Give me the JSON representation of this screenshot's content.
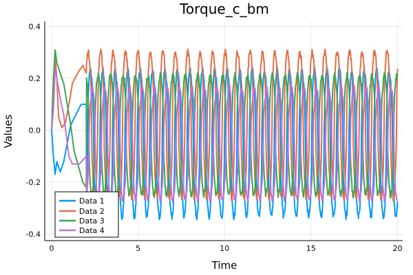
{
  "chart_data": {
    "type": "line",
    "title": "Torque_c_bm",
    "xlabel": "Time",
    "ylabel": "Values",
    "xlim": [
      -0.4,
      20.3
    ],
    "ylim": [
      -0.425,
      0.42
    ],
    "xticks": [
      0,
      5,
      10,
      15,
      20
    ],
    "xtick_labels": [
      "0",
      "5",
      "10",
      "15",
      "20"
    ],
    "yticks": [
      -0.4,
      -0.2,
      0.0,
      0.2,
      0.4
    ],
    "ytick_labels": [
      "-0.4",
      "-0.2",
      "0.0",
      "0.2",
      "0.4"
    ],
    "grid": true,
    "legend_position": "bottom-left",
    "period": 0.72,
    "series": [
      {
        "name": "Data 1",
        "color": "#009af9",
        "phase": 0.12,
        "x": [
          0,
          0.1,
          0.2,
          0.3,
          0.4,
          0.5,
          0.7,
          0.9,
          1.1,
          1.4,
          1.7,
          2.0
        ],
        "values": [
          0.0,
          -0.1,
          -0.17,
          -0.12,
          -0.14,
          -0.16,
          -0.12,
          -0.05,
          0.02,
          0.06,
          0.1,
          0.1
        ],
        "steady": {
          "mean": 0.05,
          "low": -0.38,
          "high": 0.28
        }
      },
      {
        "name": "Data 2",
        "color": "#e26f46",
        "phase": 0.3,
        "x": [
          0,
          0.1,
          0.2,
          0.3,
          0.4,
          0.6,
          0.8,
          1.0,
          1.2,
          1.5,
          1.8,
          2.0
        ],
        "values": [
          0.0,
          0.16,
          0.28,
          0.2,
          0.05,
          0.01,
          0.03,
          0.1,
          0.18,
          0.22,
          0.25,
          0.22
        ],
        "steady": {
          "mean": 0.02,
          "low": -0.3,
          "high": 0.36
        }
      },
      {
        "name": "Data 3",
        "color": "#3da44d",
        "phase": 0.52,
        "x": [
          0,
          0.1,
          0.2,
          0.3,
          0.5,
          0.7,
          0.9,
          1.1,
          1.3,
          1.6,
          1.8,
          2.0
        ],
        "values": [
          0.0,
          0.2,
          0.31,
          0.26,
          0.22,
          0.18,
          0.1,
          0.02,
          -0.08,
          -0.15,
          -0.2,
          -0.22
        ],
        "steady": {
          "mean": -0.06,
          "low": -0.28,
          "high": 0.26
        }
      },
      {
        "name": "Data 4",
        "color": "#c271d2",
        "phase": 0.0,
        "x": [
          0,
          0.1,
          0.2,
          0.3,
          0.5,
          0.7,
          0.9,
          1.0,
          1.2,
          1.4,
          1.6,
          2.0
        ],
        "values": [
          0.0,
          0.08,
          0.24,
          0.2,
          0.12,
          0.06,
          -0.05,
          -0.1,
          -0.13,
          -0.13,
          -0.13,
          -0.1
        ],
        "steady": {
          "mean": 0.0,
          "low": -0.3,
          "high": 0.2
        }
      }
    ]
  }
}
